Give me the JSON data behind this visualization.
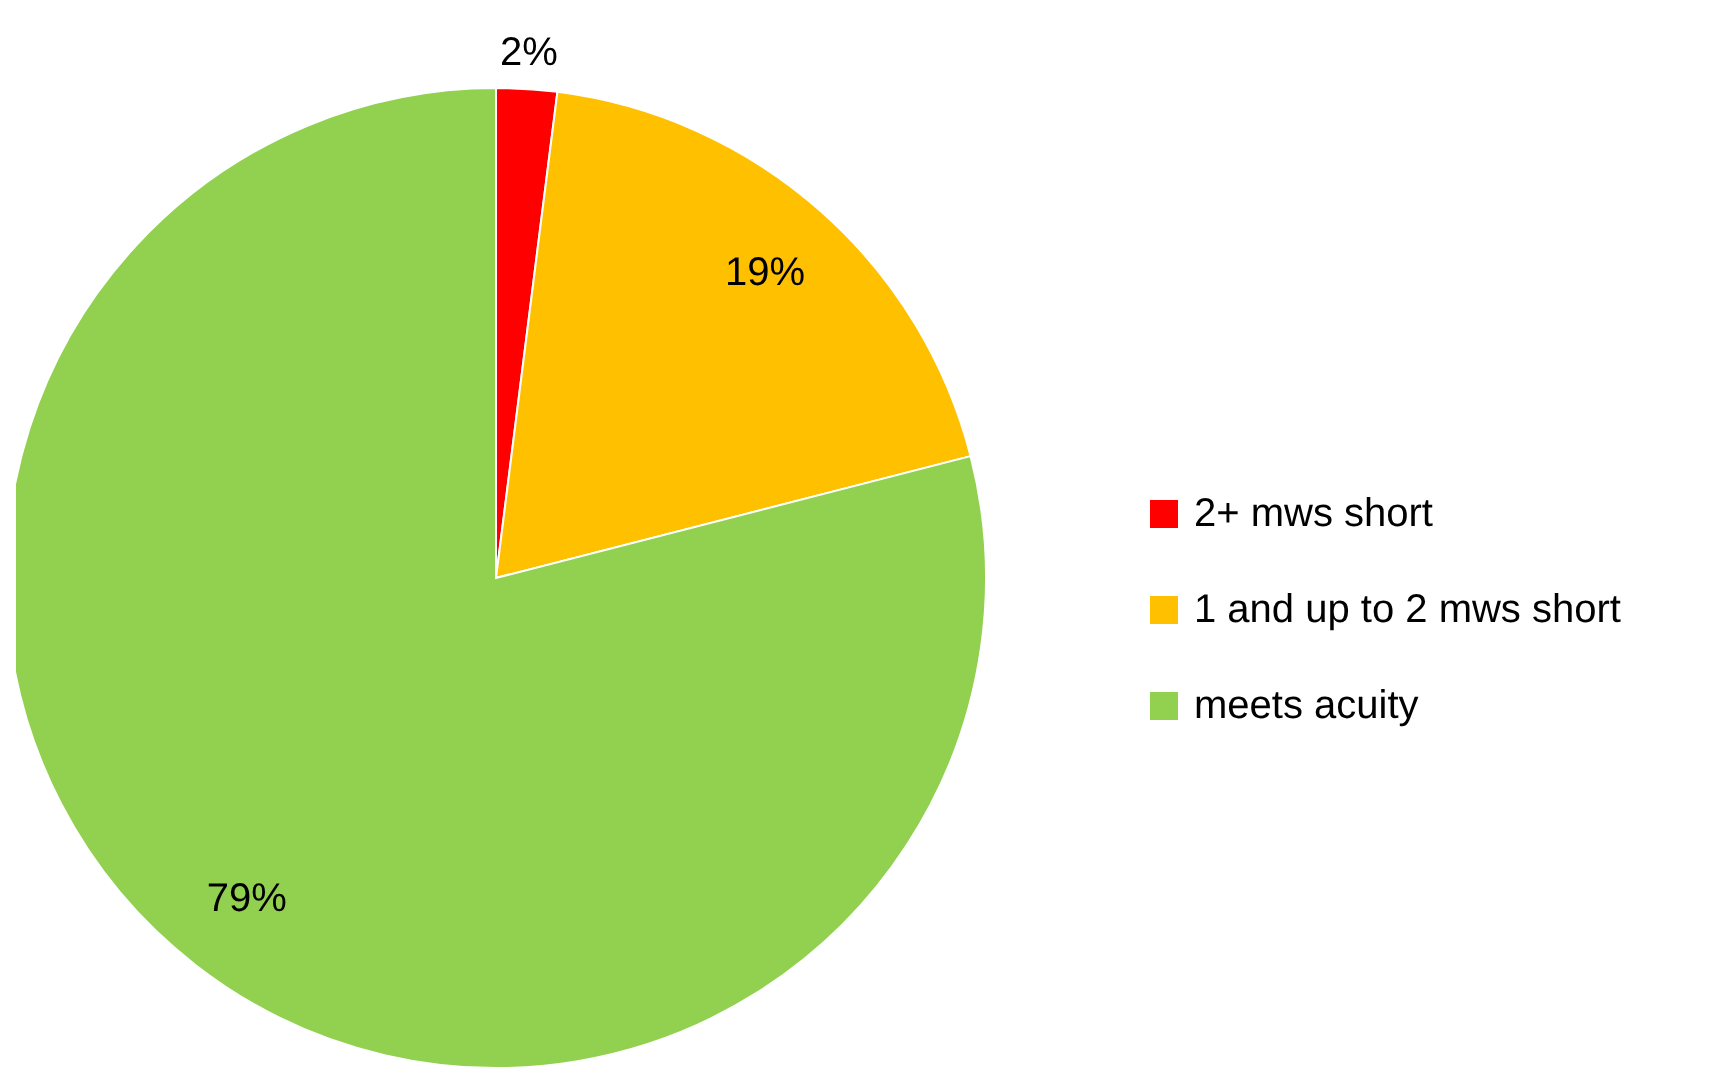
{
  "chart_data": {
    "type": "pie",
    "categories": [
      "2+ mws short",
      "1 and up to 2 mws short",
      "meets acuity"
    ],
    "values": [
      2,
      19,
      79
    ],
    "colors": [
      "#ff0000",
      "#ffc000",
      "#92d050"
    ],
    "value_labels": [
      "2%",
      "19%",
      "79%"
    ],
    "legend": "right"
  }
}
